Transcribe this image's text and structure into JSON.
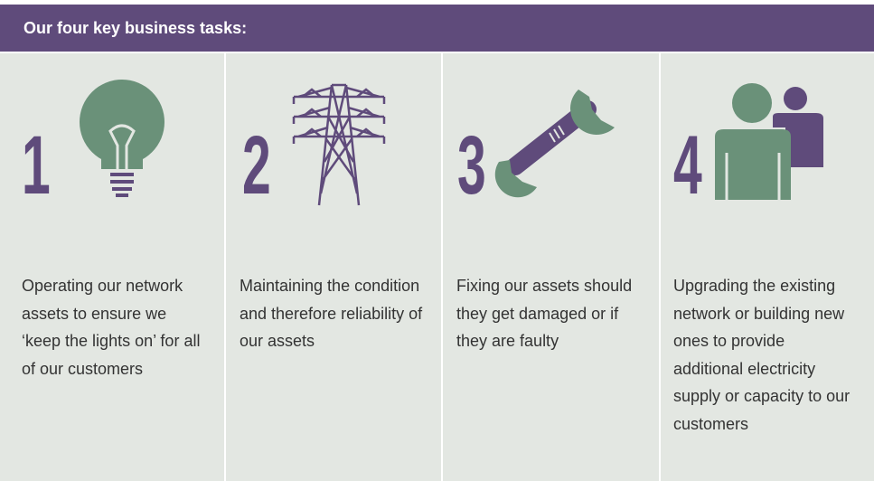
{
  "header": {
    "title": "Our four key business tasks:"
  },
  "tasks": [
    {
      "number": "1",
      "text": "Operating our network assets to ensure we ‘keep the lights on’ for all of our customers"
    },
    {
      "number": "2",
      "text": "Maintaining the condition and therefore reliability of our assets"
    },
    {
      "number": "3",
      "text": "Fixing our assets should they get damaged or if they are faulty"
    },
    {
      "number": "4",
      "text": "Upgrading the existing network or building new ones to provide additional electricity supply or capacity to our customers"
    }
  ]
}
